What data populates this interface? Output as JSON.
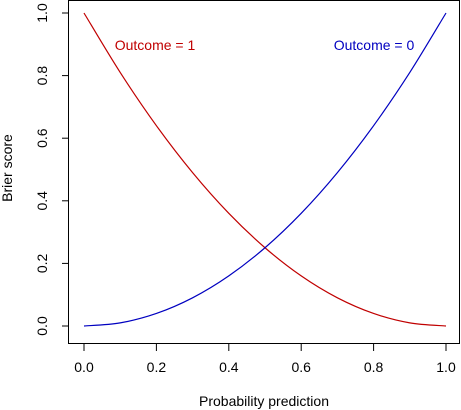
{
  "chart_data": {
    "type": "line",
    "xlabel": "Probability prediction",
    "ylabel": "Brier score",
    "xlim": [
      0,
      1
    ],
    "ylim": [
      0,
      1
    ],
    "x_ticks": [
      0.0,
      0.2,
      0.4,
      0.6,
      0.8,
      1.0
    ],
    "y_ticks": [
      0.0,
      0.2,
      0.4,
      0.6,
      0.8,
      1.0
    ],
    "x_tick_labels": [
      "0.0",
      "0.2",
      "0.4",
      "0.6",
      "0.8",
      "1.0"
    ],
    "y_tick_labels": [
      "0.0",
      "0.2",
      "0.4",
      "0.6",
      "0.8",
      "1.0"
    ],
    "grid": false,
    "x": [
      0.0,
      0.1,
      0.2,
      0.3,
      0.4,
      0.5,
      0.6,
      0.7,
      0.8,
      0.9,
      1.0
    ],
    "series": [
      {
        "name": "Outcome = 1",
        "color": "#c00000",
        "values": [
          1.0,
          0.81,
          0.64,
          0.49,
          0.36,
          0.25,
          0.16,
          0.09,
          0.04,
          0.01,
          0.0
        ]
      },
      {
        "name": "Outcome = 0",
        "color": "#0000c0",
        "values": [
          0.0,
          0.01,
          0.04,
          0.09,
          0.16,
          0.25,
          0.36,
          0.49,
          0.64,
          0.81,
          1.0
        ]
      }
    ]
  }
}
